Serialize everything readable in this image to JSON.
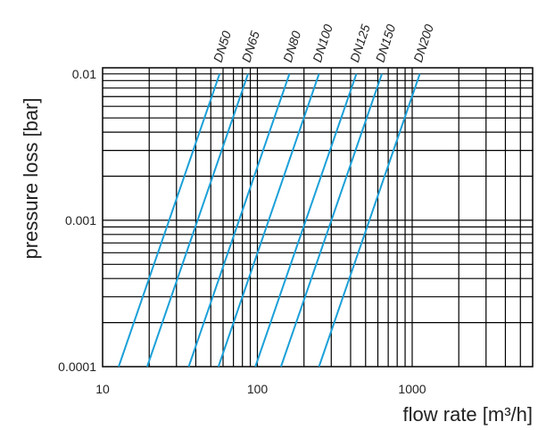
{
  "chart_data": {
    "type": "line",
    "title": "",
    "xlabel": "flow rate [m³/h]",
    "ylabel": "pressure loss [bar]",
    "x_scale": "log",
    "y_scale": "log",
    "xlim": [
      10,
      6000
    ],
    "ylim": [
      0.0001,
      0.011
    ],
    "x_ticks": [
      "10",
      "100",
      "1000"
    ],
    "y_ticks": [
      "0.0001",
      "0.001",
      "0.01"
    ],
    "grid": true,
    "line_color": "#1aa0d8",
    "series": [
      {
        "name": "DN50",
        "x": [
          12.7,
          57
        ],
        "y": [
          0.0001,
          0.01
        ]
      },
      {
        "name": "DN65",
        "x": [
          19.4,
          87
        ],
        "y": [
          0.0001,
          0.01
        ]
      },
      {
        "name": "DN80",
        "x": [
          36,
          161
        ],
        "y": [
          0.0001,
          0.01
        ]
      },
      {
        "name": "DN100",
        "x": [
          56,
          250
        ],
        "y": [
          0.0001,
          0.01
        ]
      },
      {
        "name": "DN125",
        "x": [
          97,
          436
        ],
        "y": [
          0.0001,
          0.01
        ]
      },
      {
        "name": "DN150",
        "x": [
          142,
          637
        ],
        "y": [
          0.0001,
          0.01
        ]
      },
      {
        "name": "DN200",
        "x": [
          250,
          1120
        ],
        "y": [
          0.0001,
          0.01
        ]
      }
    ]
  }
}
